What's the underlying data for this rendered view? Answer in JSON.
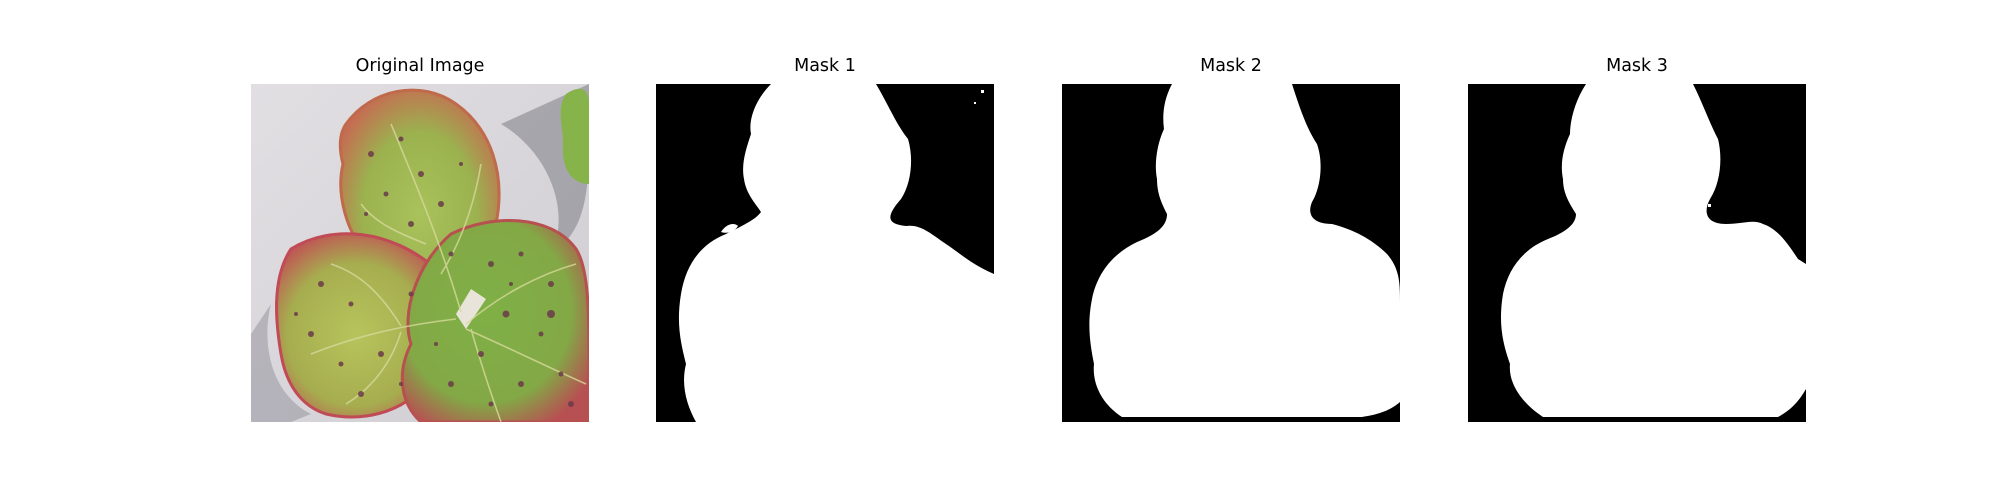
{
  "panels": [
    {
      "title": "Original Image"
    },
    {
      "title": "Mask 1"
    },
    {
      "title": "Mask 2"
    },
    {
      "title": "Mask 3"
    }
  ],
  "colors": {
    "background": "#ffffff",
    "mask_background": "#000000",
    "mask_foreground": "#ffffff",
    "photo_background": "#dad8dc",
    "leaf_green": "#8fb04a",
    "leaf_red": "#c25a4f",
    "spot": "#6b3a4a"
  },
  "icons": [
    "leaf-photo",
    "segmentation-mask"
  ]
}
